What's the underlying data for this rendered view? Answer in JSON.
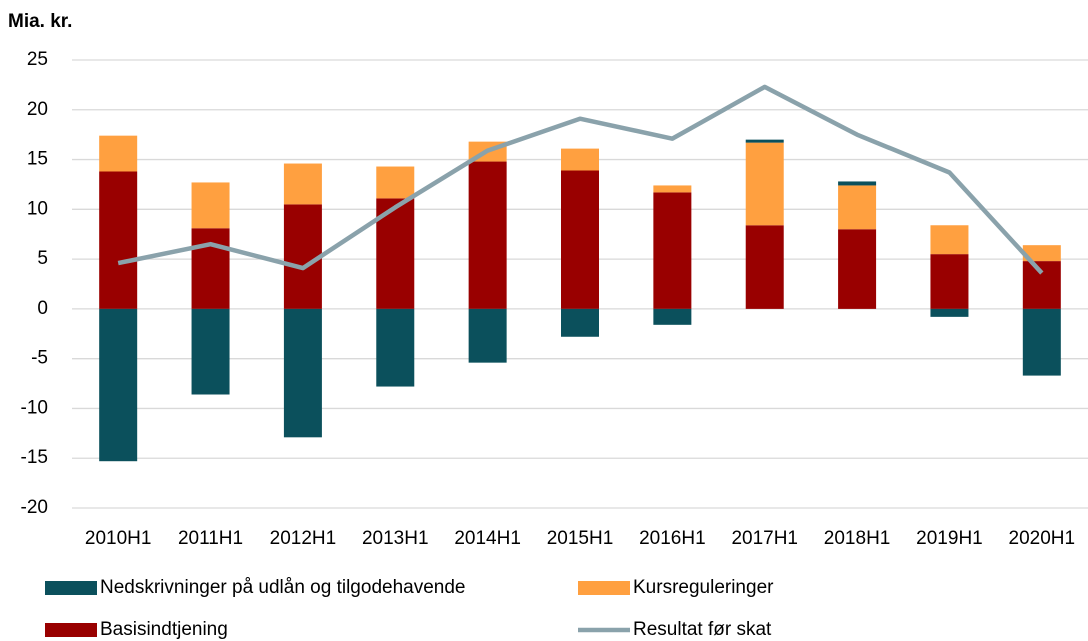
{
  "chart_data": {
    "type": "bar",
    "title": "Mia. kr.",
    "categories": [
      "2010H1",
      "2011H1",
      "2012H1",
      "2013H1",
      "2014H1",
      "2015H1",
      "2016H1",
      "2017H1",
      "2018H1",
      "2019H1",
      "2020H1"
    ],
    "series": [
      {
        "name": "Nedskrivninger på udlån og tilgodehavende",
        "color": "#0b505c",
        "values": [
          -15.3,
          -8.6,
          -12.9,
          -7.8,
          -5.4,
          -2.8,
          -1.6,
          0.3,
          0.4,
          -0.8,
          -6.7
        ]
      },
      {
        "name": "Kursreguleringer",
        "color": "#ffa040",
        "values": [
          3.6,
          4.6,
          4.1,
          3.2,
          2.0,
          2.2,
          0.7,
          8.3,
          4.4,
          2.9,
          1.6
        ]
      },
      {
        "name": "Basisindtjening",
        "color": "#990000",
        "values": [
          13.8,
          8.1,
          10.5,
          11.1,
          14.8,
          13.9,
          11.7,
          8.4,
          8.0,
          5.5,
          4.8
        ]
      },
      {
        "name": "Resultat før skat",
        "color": "#8aa2ab",
        "type": "line",
        "values": [
          4.6,
          6.5,
          4.1,
          10.2,
          15.9,
          19.1,
          17.1,
          22.3,
          17.5,
          13.7,
          3.6
        ]
      }
    ],
    "ylim": [
      -20,
      25
    ],
    "yticks": [
      -20,
      -15,
      -10,
      -5,
      0,
      5,
      10,
      15,
      20,
      25
    ],
    "grid": true
  }
}
